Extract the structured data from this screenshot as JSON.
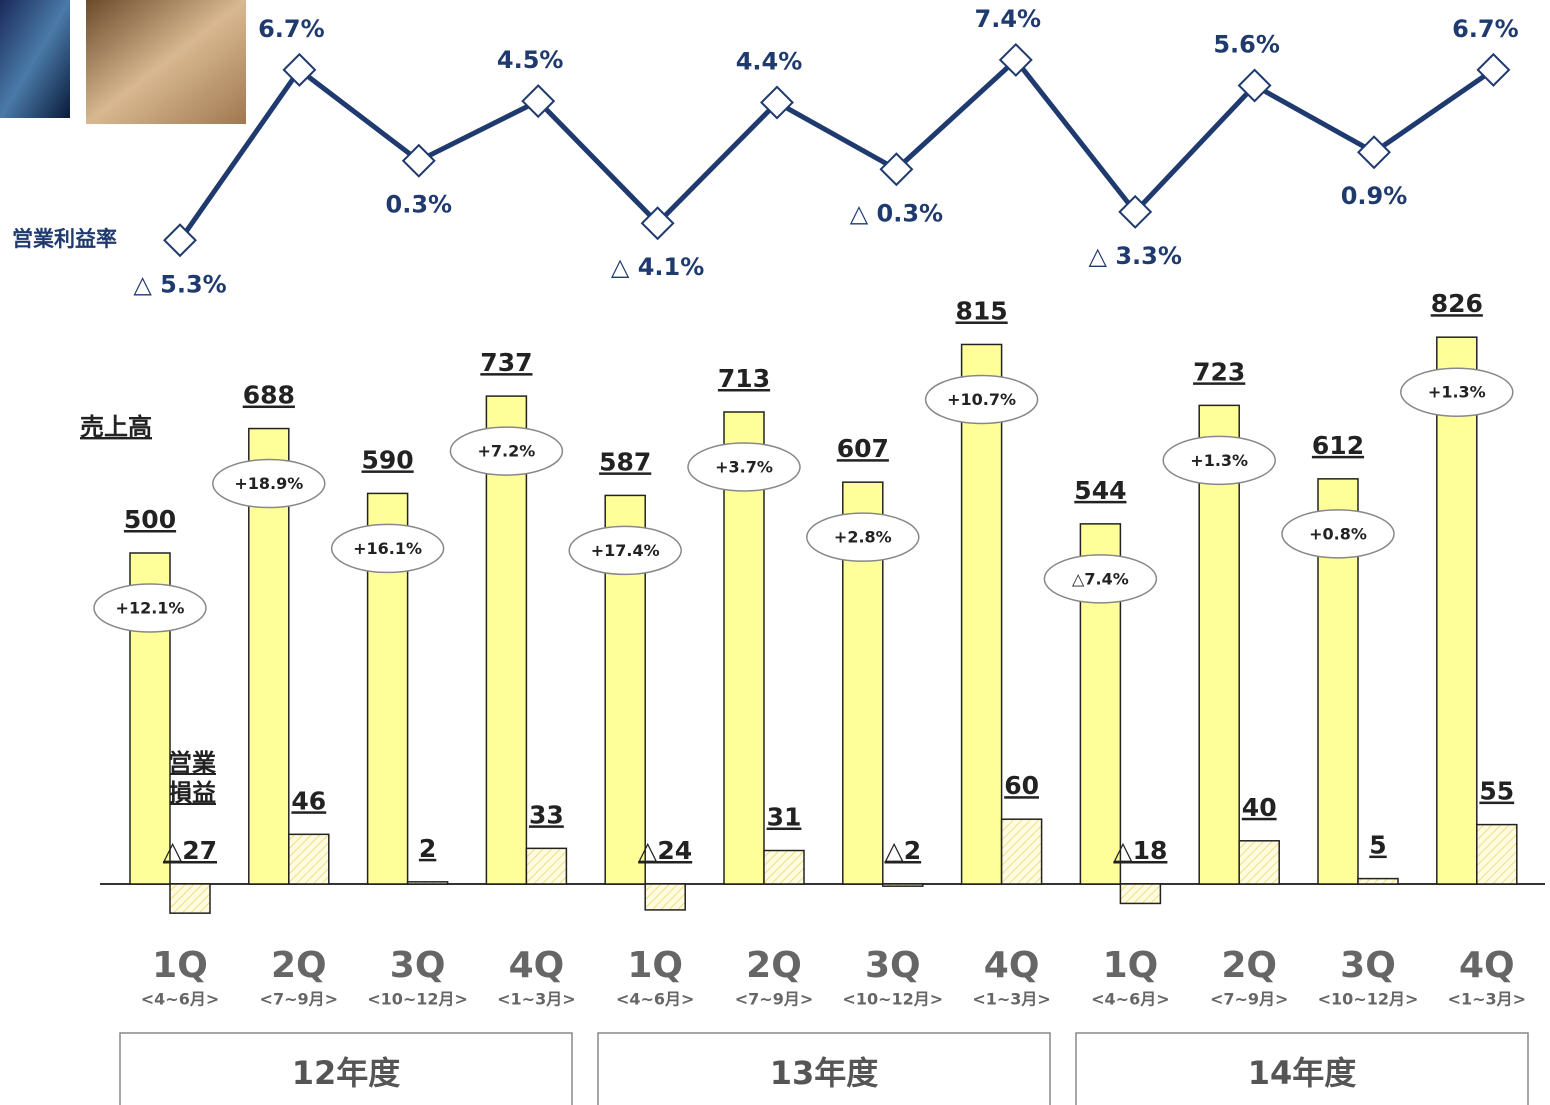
{
  "chart_data": {
    "type": "bar",
    "categories": [
      "1Q",
      "2Q",
      "3Q",
      "4Q",
      "1Q",
      "2Q",
      "3Q",
      "4Q",
      "1Q",
      "2Q",
      "3Q",
      "4Q"
    ],
    "category_sublabels": [
      "<4~6月>",
      "<7~9月>",
      "<10~12月>",
      "<1~3月>",
      "<4~6月>",
      "<7~9月>",
      "<10~12月>",
      "<1~3月>",
      "<4~6月>",
      "<7~9月>",
      "<10~12月>",
      "<1~3月>"
    ],
    "fiscal_years": [
      "12年度",
      "13年度",
      "14年度"
    ],
    "series": [
      {
        "name": "売上高",
        "color": "#ffff99",
        "values": [
          500,
          688,
          590,
          737,
          587,
          713,
          607,
          815,
          544,
          723,
          612,
          826
        ],
        "change_labels": [
          "+12.1%",
          "+18.9%",
          "+16.1%",
          "+7.2%",
          "+17.4%",
          "+3.7%",
          "+2.8%",
          "+10.7%",
          "△7.4%",
          "+1.3%",
          "+0.8%",
          "+1.3%"
        ]
      },
      {
        "name": "営業損益",
        "color": "#ffff99",
        "values": [
          -27,
          46,
          2,
          33,
          -24,
          31,
          -2,
          60,
          -18,
          40,
          5,
          55
        ],
        "value_labels": [
          "△27",
          "46",
          "2",
          "33",
          "△24",
          "31",
          "△2",
          "60",
          "△18",
          "40",
          "5",
          "55"
        ]
      }
    ],
    "line": {
      "name": "営業利益率",
      "color": "#1f3a6e",
      "values": [
        -5.3,
        6.7,
        0.3,
        4.5,
        -4.1,
        4.4,
        -0.3,
        7.4,
        -3.3,
        5.6,
        0.9,
        6.7
      ],
      "value_labels": [
        "△ 5.3%",
        "6.7%",
        "0.3%",
        "4.5%",
        "△ 4.1%",
        "4.4%",
        "△ 0.3%",
        "7.4%",
        "△ 3.3%",
        "5.6%",
        "0.9%",
        "6.7%"
      ]
    }
  }
}
